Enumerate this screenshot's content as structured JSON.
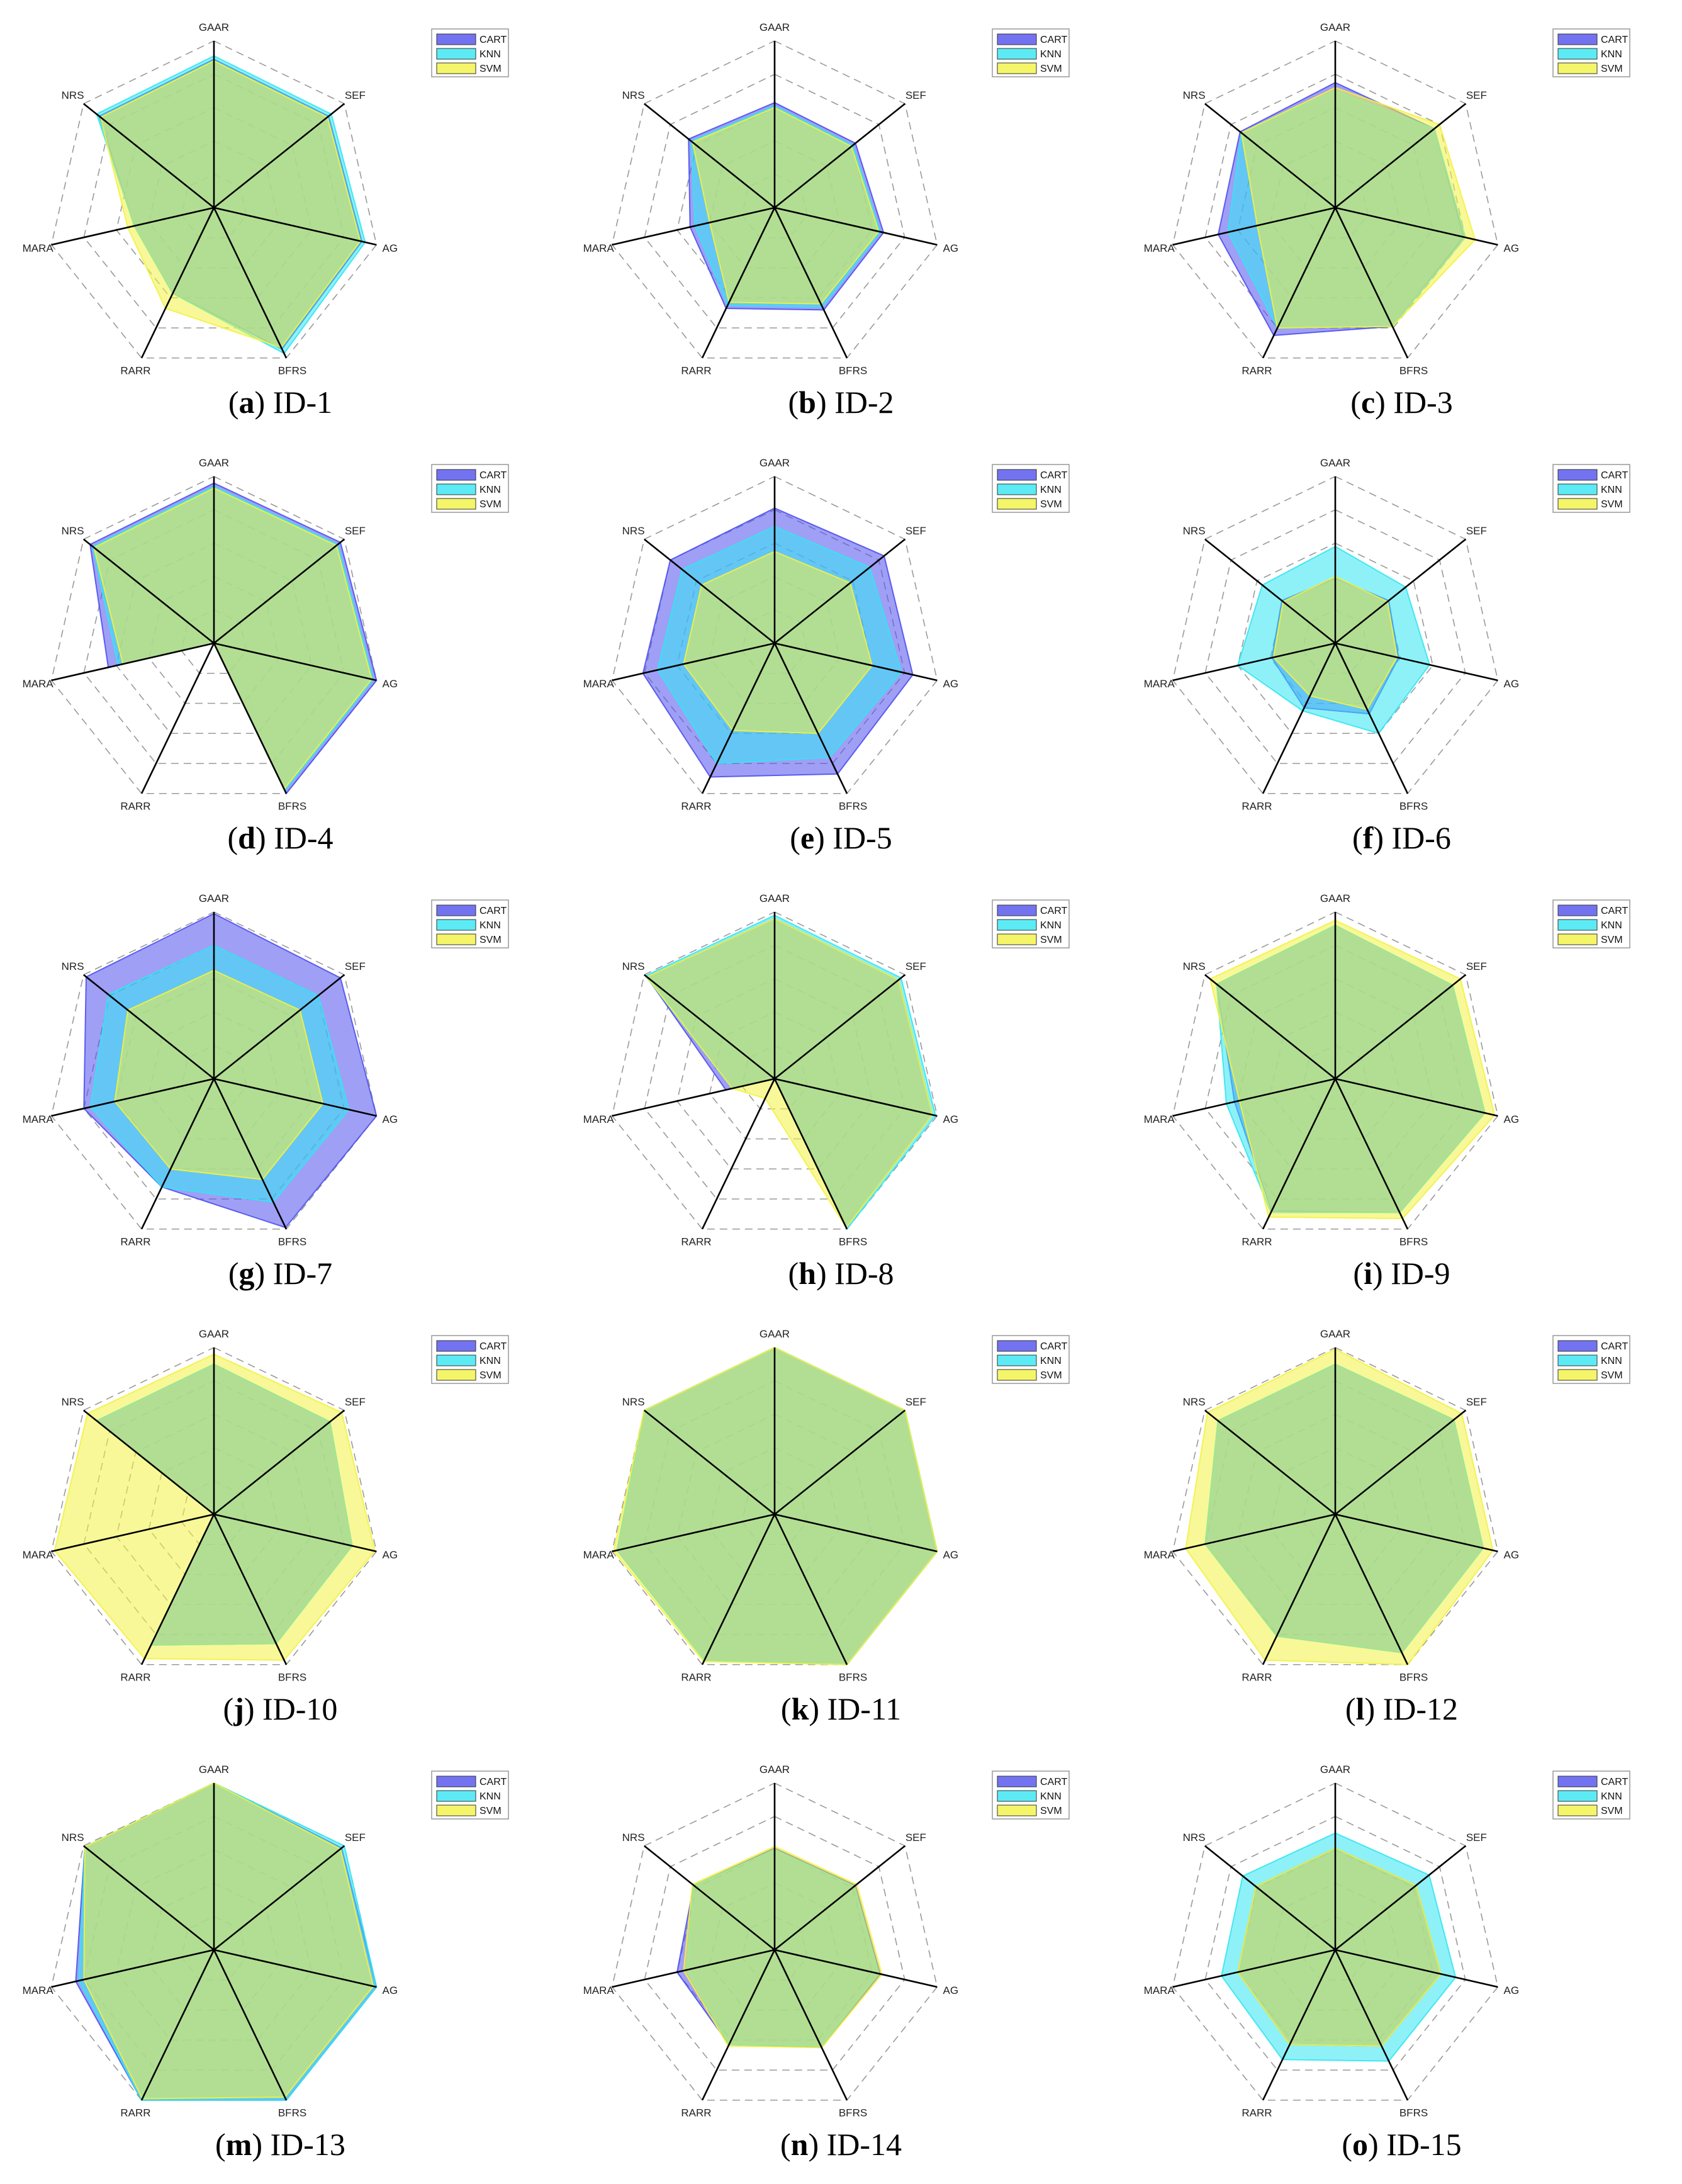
{
  "axes": [
    "GAAR",
    "SEF",
    "AG",
    "BFRS",
    "RARR",
    "MARA",
    "NRS"
  ],
  "legend": [
    "CART",
    "KNN",
    "SVM"
  ],
  "colors": {
    "CART": "#5050ee",
    "KNN": "#33e6f2",
    "SVM": "#f2f244"
  },
  "chart_data": [
    {
      "type": "radar",
      "letter": "a",
      "label": "ID-1",
      "scale": [
        0,
        1
      ],
      "series": [
        {
          "name": "CART",
          "values": [
            0.89,
            0.88,
            0.91,
            0.94,
            0.57,
            0.49,
            0.88
          ]
        },
        {
          "name": "KNN",
          "values": [
            0.91,
            0.9,
            0.93,
            0.97,
            0.57,
            0.49,
            0.9
          ]
        },
        {
          "name": "SVM",
          "values": [
            0.88,
            0.87,
            0.9,
            0.93,
            0.67,
            0.53,
            0.87
          ]
        }
      ]
    },
    {
      "type": "radar",
      "letter": "b",
      "label": "ID-2",
      "scale": [
        0,
        1
      ],
      "series": [
        {
          "name": "CART",
          "values": [
            0.63,
            0.62,
            0.67,
            0.68,
            0.67,
            0.52,
            0.66
          ]
        },
        {
          "name": "KNN",
          "values": [
            0.61,
            0.6,
            0.65,
            0.66,
            0.65,
            0.49,
            0.64
          ]
        },
        {
          "name": "SVM",
          "values": [
            0.6,
            0.59,
            0.64,
            0.64,
            0.63,
            0.4,
            0.63
          ]
        }
      ]
    },
    {
      "type": "radar",
      "letter": "c",
      "label": "ID-3",
      "scale": [
        0,
        1
      ],
      "series": [
        {
          "name": "CART",
          "values": [
            0.75,
            0.76,
            0.79,
            0.79,
            0.85,
            0.72,
            0.73
          ]
        },
        {
          "name": "KNN",
          "values": [
            0.7,
            0.76,
            0.8,
            0.79,
            0.8,
            0.66,
            0.72
          ]
        },
        {
          "name": "SVM",
          "values": [
            0.72,
            0.8,
            0.86,
            0.79,
            0.8,
            0.48,
            0.72
          ]
        }
      ]
    },
    {
      "type": "radar",
      "letter": "d",
      "label": "ID-4",
      "scale": [
        0,
        1
      ],
      "series": [
        {
          "name": "CART",
          "values": [
            0.96,
            0.97,
            1.0,
            1.0,
            0.0,
            0.65,
            0.95
          ]
        },
        {
          "name": "KNN",
          "values": [
            0.94,
            0.95,
            0.98,
            0.98,
            0.0,
            0.59,
            0.93
          ]
        },
        {
          "name": "SVM",
          "values": [
            0.93,
            0.94,
            0.97,
            0.97,
            0.0,
            0.56,
            0.92
          ]
        }
      ]
    },
    {
      "type": "radar",
      "letter": "e",
      "label": "ID-5",
      "scale": [
        0,
        1
      ],
      "series": [
        {
          "name": "CART",
          "values": [
            0.81,
            0.84,
            0.85,
            0.87,
            0.89,
            0.81,
            0.8
          ]
        },
        {
          "name": "KNN",
          "values": [
            0.7,
            0.73,
            0.78,
            0.76,
            0.8,
            0.72,
            0.71
          ]
        },
        {
          "name": "SVM",
          "values": [
            0.55,
            0.58,
            0.6,
            0.6,
            0.58,
            0.56,
            0.56
          ]
        }
      ]
    },
    {
      "type": "radar",
      "letter": "f",
      "label": "ID-6",
      "scale": [
        0,
        1
      ],
      "series": [
        {
          "name": "CART",
          "values": [
            0.39,
            0.41,
            0.39,
            0.47,
            0.43,
            0.39,
            0.41
          ]
        },
        {
          "name": "KNN",
          "values": [
            0.58,
            0.54,
            0.58,
            0.6,
            0.45,
            0.6,
            0.56
          ]
        },
        {
          "name": "SVM",
          "values": [
            0.4,
            0.4,
            0.38,
            0.44,
            0.35,
            0.38,
            0.4
          ]
        }
      ]
    },
    {
      "type": "radar",
      "letter": "g",
      "label": "ID-7",
      "scale": [
        0,
        1
      ],
      "series": [
        {
          "name": "CART",
          "values": [
            0.99,
            0.97,
            1.0,
            0.99,
            0.72,
            0.8,
            0.98
          ]
        },
        {
          "name": "KNN",
          "values": [
            0.8,
            0.8,
            0.83,
            0.82,
            0.72,
            0.76,
            0.81
          ]
        },
        {
          "name": "SVM",
          "values": [
            0.65,
            0.66,
            0.67,
            0.67,
            0.6,
            0.61,
            0.66
          ]
        }
      ]
    },
    {
      "type": "radar",
      "letter": "h",
      "label": "ID-8",
      "scale": [
        0,
        1
      ],
      "series": [
        {
          "name": "CART",
          "values": [
            0.96,
            0.95,
            0.97,
            0.99,
            0.0,
            0.3,
            0.98
          ]
        },
        {
          "name": "KNN",
          "values": [
            0.98,
            0.97,
            0.99,
            1.0,
            0.0,
            0.26,
            0.99
          ]
        },
        {
          "name": "SVM",
          "values": [
            0.96,
            0.95,
            0.97,
            0.99,
            0.13,
            0.26,
            0.98
          ]
        }
      ]
    },
    {
      "type": "radar",
      "letter": "i",
      "label": "ID-9",
      "scale": [
        0,
        1
      ],
      "series": [
        {
          "name": "CART",
          "values": [
            0.92,
            0.9,
            0.92,
            0.89,
            0.88,
            0.62,
            0.91
          ]
        },
        {
          "name": "KNN",
          "values": [
            0.92,
            0.9,
            0.92,
            0.89,
            0.89,
            0.67,
            0.91
          ]
        },
        {
          "name": "SVM",
          "values": [
            0.95,
            0.96,
            0.98,
            0.93,
            0.92,
            0.59,
            0.96
          ]
        }
      ]
    },
    {
      "type": "radar",
      "letter": "j",
      "label": "ID-10",
      "scale": [
        0,
        1
      ],
      "series": [
        {
          "name": "CART",
          "values": [
            0.9,
            0.89,
            0.85,
            0.86,
            0.87,
            0.0,
            0.9
          ]
        },
        {
          "name": "KNN",
          "values": [
            0.9,
            0.89,
            0.85,
            0.86,
            0.87,
            0.0,
            0.9
          ]
        },
        {
          "name": "SVM",
          "values": [
            0.96,
            0.98,
            0.99,
            0.97,
            0.96,
            0.98,
            0.97
          ]
        }
      ]
    },
    {
      "type": "radar",
      "letter": "k",
      "label": "ID-11",
      "scale": [
        0,
        1
      ],
      "series": [
        {
          "name": "CART",
          "values": [
            1.0,
            1.0,
            1.0,
            1.0,
            0.97,
            0.97,
            1.0
          ]
        },
        {
          "name": "KNN",
          "values": [
            1.0,
            1.0,
            1.0,
            1.0,
            0.97,
            0.97,
            1.0
          ]
        },
        {
          "name": "SVM",
          "values": [
            1.0,
            1.0,
            1.0,
            1.0,
            0.98,
            0.99,
            1.0
          ]
        }
      ]
    },
    {
      "type": "radar",
      "letter": "l",
      "label": "ID-12",
      "scale": [
        0,
        1
      ],
      "series": [
        {
          "name": "CART",
          "values": [
            0.9,
            0.91,
            0.91,
            0.92,
            0.81,
            0.8,
            0.9
          ]
        },
        {
          "name": "KNN",
          "values": [
            0.9,
            0.91,
            0.91,
            0.92,
            0.81,
            0.8,
            0.9
          ]
        },
        {
          "name": "SVM",
          "values": [
            0.99,
            0.97,
            0.97,
            1.0,
            0.97,
            0.92,
            0.98
          ]
        }
      ]
    },
    {
      "type": "radar",
      "letter": "m",
      "label": "ID-13",
      "scale": [
        0,
        1
      ],
      "series": [
        {
          "name": "CART",
          "values": [
            1.0,
            0.98,
            1.0,
            1.0,
            1.0,
            0.85,
            0.99
          ]
        },
        {
          "name": "KNN",
          "values": [
            1.0,
            1.0,
            1.0,
            1.0,
            1.0,
            0.83,
            0.99
          ]
        },
        {
          "name": "SVM",
          "values": [
            1.0,
            0.97,
            0.98,
            0.98,
            0.99,
            0.8,
            0.99
          ]
        }
      ]
    },
    {
      "type": "radar",
      "letter": "n",
      "label": "ID-14",
      "scale": [
        0,
        1
      ],
      "series": [
        {
          "name": "CART",
          "values": [
            0.61,
            0.62,
            0.65,
            0.65,
            0.63,
            0.6,
            0.62
          ]
        },
        {
          "name": "KNN",
          "values": [
            0.6,
            0.61,
            0.64,
            0.64,
            0.63,
            0.54,
            0.62
          ]
        },
        {
          "name": "SVM",
          "values": [
            0.62,
            0.63,
            0.66,
            0.65,
            0.64,
            0.56,
            0.63
          ]
        }
      ]
    },
    {
      "type": "radar",
      "letter": "o",
      "label": "ID-15",
      "scale": [
        0,
        1
      ],
      "series": [
        {
          "name": "CART",
          "values": [
            0.61,
            0.62,
            0.65,
            0.64,
            0.63,
            0.6,
            0.61
          ]
        },
        {
          "name": "KNN",
          "values": [
            0.7,
            0.72,
            0.74,
            0.74,
            0.73,
            0.7,
            0.71
          ]
        },
        {
          "name": "SVM",
          "values": [
            0.61,
            0.62,
            0.65,
            0.64,
            0.63,
            0.6,
            0.61
          ]
        }
      ]
    }
  ]
}
